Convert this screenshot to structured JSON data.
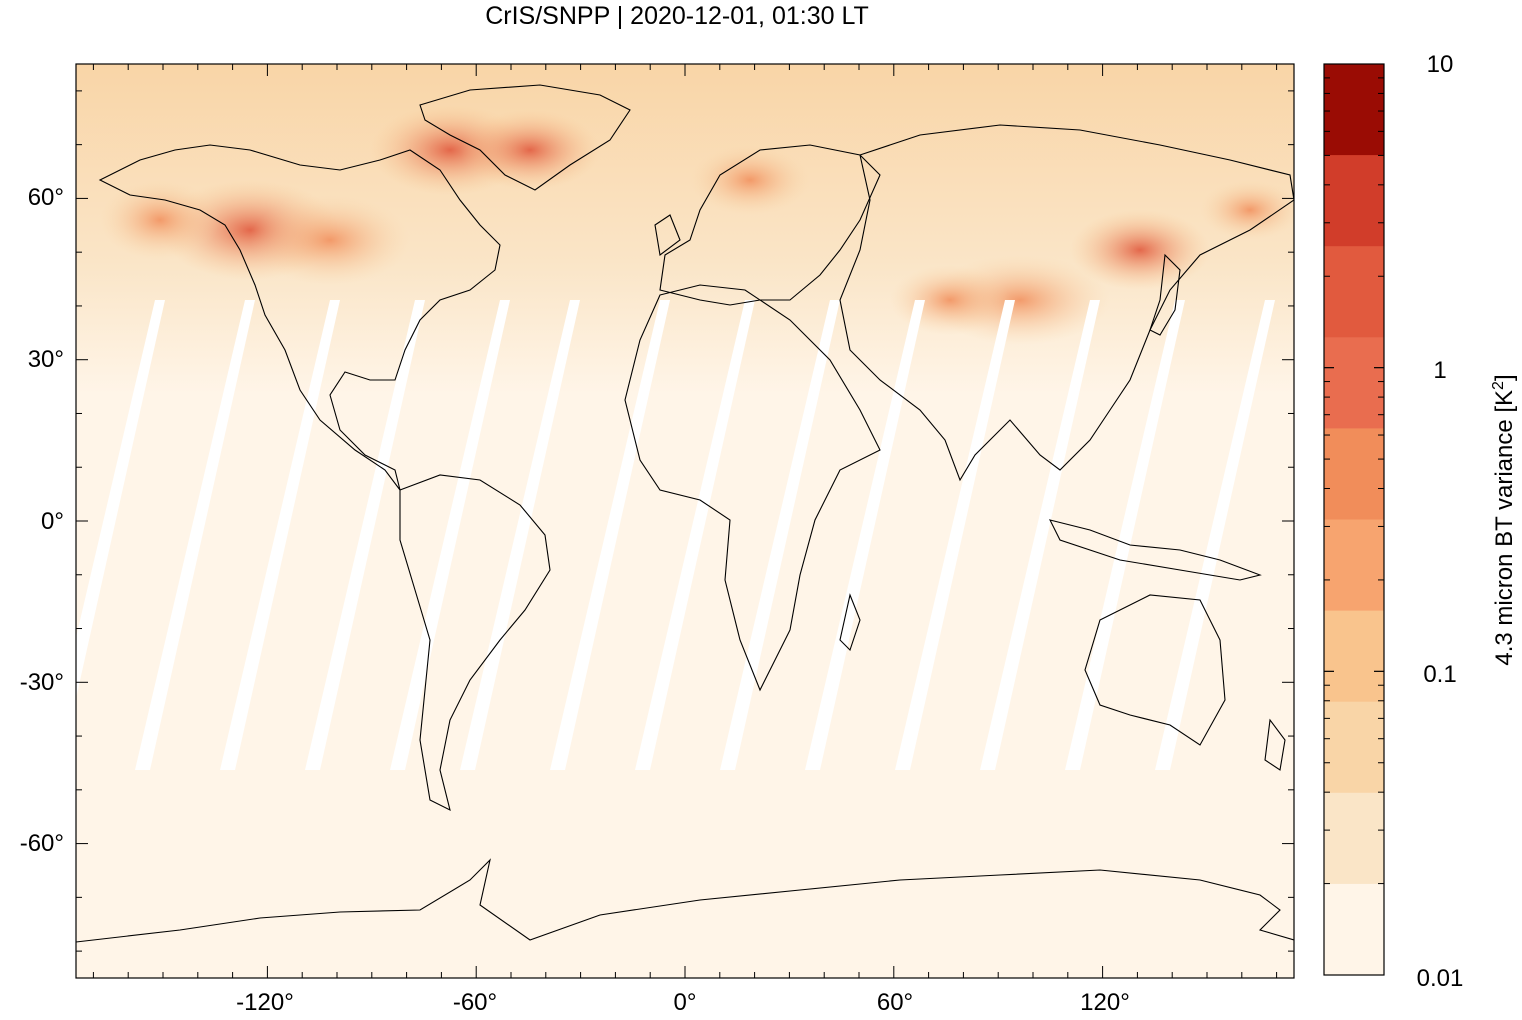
{
  "title": "CrIS/SNPP | 2020-12-01, 01:30 LT",
  "colorbar": {
    "label": "4.3 micron BT variance [K²]",
    "label_main": "4.3 micron BT variance [K",
    "label_sup": "2",
    "label_end": "]",
    "scale": "log",
    "range": [
      0.01,
      10
    ],
    "tick_labels": [
      "10",
      "1",
      "0.1",
      "0.01"
    ],
    "colors": [
      "#fff5e8",
      "#fae5c7",
      "#f9d5a7",
      "#f9c48d",
      "#f7a46f",
      "#f18d5a",
      "#e96d4f",
      "#e15a3e",
      "#d13d2a",
      "#9a0c04"
    ]
  },
  "axes": {
    "x_tick_labels": [
      "-120°",
      "-60°",
      "0°",
      "60°",
      "120°"
    ],
    "y_tick_labels": [
      "60°",
      "30°",
      "0°",
      "-30°",
      "-60°"
    ],
    "x_range": [
      -175,
      175
    ],
    "y_range": [
      -85,
      85
    ]
  }
}
